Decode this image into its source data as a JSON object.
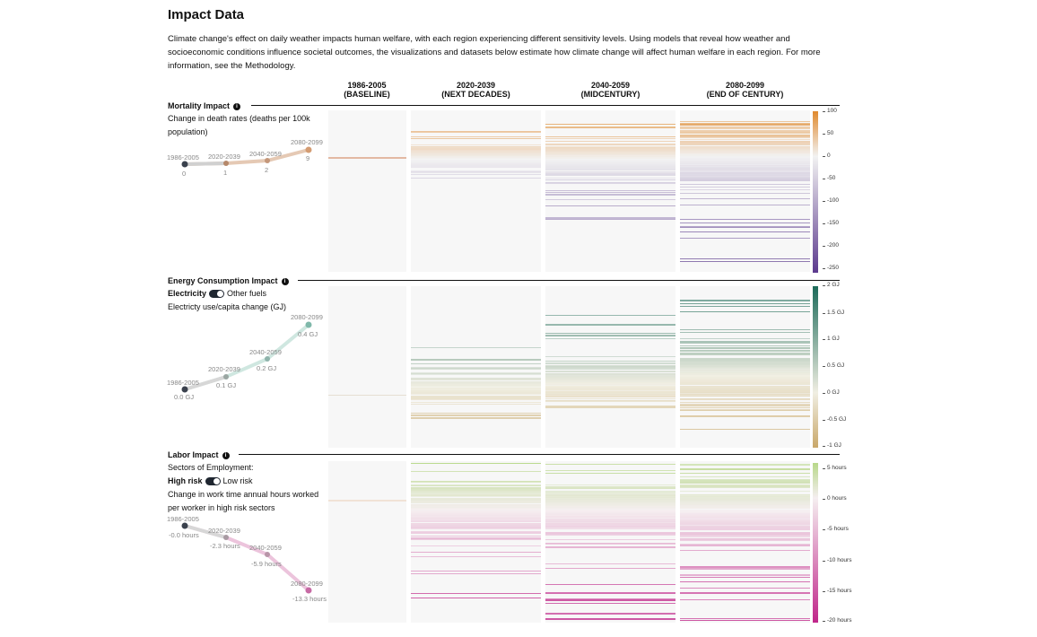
{
  "page": {
    "title": "Impact Data",
    "intro": "Climate change's effect on daily weather impacts human welfare, with each region experiencing different sensitivity levels. Using models that reveal how weather and socioeconomic conditions influence societal outcomes, the visualizations and datasets below estimate how climate change will affect human welfare in each region. For more information, see the Methodology."
  },
  "columns": [
    {
      "years": "1986-2005",
      "label": "(BASELINE)"
    },
    {
      "years": "2020-2039",
      "label": "(NEXT DECADES)"
    },
    {
      "years": "2040-2059",
      "label": "(MIDCENTURY)"
    },
    {
      "years": "2080-2099",
      "label": "(END OF CENTURY)"
    }
  ],
  "mortality": {
    "title": "Mortality Impact",
    "desc": "Change in death rates (deaths per 100k population)",
    "trend": [
      {
        "period": "1986-2005",
        "value": "0"
      },
      {
        "period": "2020-2039",
        "value": "1"
      },
      {
        "period": "2040-2059",
        "value": "2"
      },
      {
        "period": "2080-2099",
        "value": "9"
      }
    ],
    "legend_ticks": [
      "100",
      "50",
      "0",
      "-50",
      "-100",
      "-150",
      "-200",
      "-250"
    ],
    "colors": {
      "high": "#e08a2e",
      "mid": "#f2f2f2",
      "low": "#5c3a8e"
    }
  },
  "energy": {
    "title": "Energy Consumption Impact",
    "toggle_on": "Electricity",
    "toggle_off": "Other fuels",
    "desc": "Electricty use/capita change (GJ)",
    "trend": [
      {
        "period": "1986-2005",
        "value": "0.0 GJ"
      },
      {
        "period": "2020-2039",
        "value": "0.1 GJ"
      },
      {
        "period": "2040-2059",
        "value": "0.2 GJ"
      },
      {
        "period": "2080-2099",
        "value": "0.4 GJ"
      }
    ],
    "legend_ticks": [
      "2 GJ",
      "1.5 GJ",
      "1 GJ",
      "0.5 GJ",
      "0 GJ",
      "-0.5 GJ",
      "-1 GJ"
    ],
    "colors": {
      "high": "#1d6b5a",
      "mid": "#f0eee2",
      "low": "#c9a86a"
    }
  },
  "labor": {
    "title": "Labor Impact",
    "sectors_label": "Sectors of Employment:",
    "toggle_on": "High risk",
    "toggle_off": "Low risk",
    "desc": "Change in work time annual hours worked per worker in high risk sectors",
    "trend": [
      {
        "period": "1986-2005",
        "value": "-0.0 hours"
      },
      {
        "period": "2020-2039",
        "value": "-2.3 hours"
      },
      {
        "period": "2040-2059",
        "value": "-5.9 hours"
      },
      {
        "period": "2080-2099",
        "value": "-13.3 hours"
      }
    ],
    "legend_ticks": [
      "5 hours",
      "0 hours",
      "-5 hours",
      "-10 hours",
      "-15 hours",
      "-20 hours"
    ],
    "colors": {
      "high": "#b8d88a",
      "mid": "#f5eef0",
      "low": "#c0268a"
    }
  }
}
